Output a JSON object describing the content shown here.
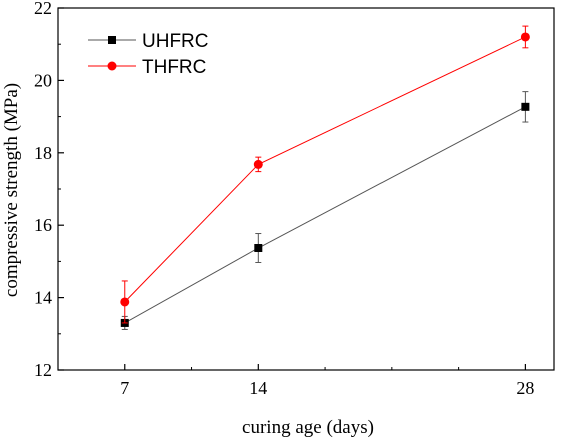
{
  "chart_data": {
    "type": "line",
    "title": "",
    "xlabel": "curing age (days)",
    "ylabel": "compressive strength (MPa)",
    "xlim": [
      3.5,
      29.5
    ],
    "ylim": [
      12,
      22
    ],
    "x_ticks": [
      7,
      14,
      28
    ],
    "x_tick_labels": [
      "7",
      "14",
      "28"
    ],
    "y_ticks": [
      12,
      14,
      16,
      18,
      20,
      22
    ],
    "y_tick_labels": [
      "12",
      "14",
      "16",
      "18",
      "20",
      "22"
    ],
    "x": [
      7,
      14,
      28
    ],
    "grid": false,
    "legend_position": "top-left",
    "series": [
      {
        "name": "UHFRC",
        "values": [
          13.3,
          15.37,
          19.27
        ],
        "errors": [
          0.18,
          0.4,
          0.42
        ],
        "color": "#555555",
        "marker_color": "#000000",
        "marker": "square"
      },
      {
        "name": "THFRC",
        "values": [
          13.88,
          17.68,
          21.2
        ],
        "errors": [
          0.58,
          0.2,
          0.3
        ],
        "color": "#ff0000",
        "marker_color": "#ff0000",
        "marker": "circle"
      }
    ]
  }
}
